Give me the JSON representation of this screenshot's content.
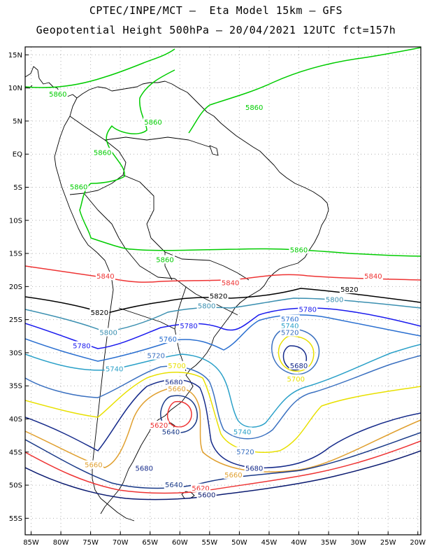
{
  "title_line1": "CPTEC/INPE/MCT –  Eta Model 15km – GFS",
  "title_line2": "Geopotential Height 500hPa – 20/04/2021 12UTC fct=157h",
  "lon_ticks": [
    "85W",
    "80W",
    "75W",
    "70W",
    "65W",
    "60W",
    "55W",
    "50W",
    "45W",
    "40W",
    "35W",
    "30W",
    "25W",
    "20W"
  ],
  "lat_ticks": [
    "15N",
    "10N",
    "5N",
    "EQ",
    "5S",
    "10S",
    "15S",
    "20S",
    "25S",
    "30S",
    "35S",
    "40S",
    "45S",
    "50S",
    "55S"
  ],
  "contour_colors": {
    "5860": "#00cc00",
    "5840": "#ee3333",
    "5820": "#000000",
    "5800": "#3a8fb0",
    "5780": "#1a1aee",
    "5760": "#2a6fd0",
    "5740": "#2aa0c8",
    "5720": "#3a70c0",
    "5700": "#e8e000",
    "5680": "#152a8a",
    "5660": "#e0a030",
    "5640": "#1a3a88",
    "5620": "#ee3333",
    "5600": "#0a1a70"
  },
  "contour_labels": [
    {
      "text": "5860",
      "level": "5860",
      "lon": -80.5,
      "lat": 9.0
    },
    {
      "text": "5860",
      "level": "5860",
      "lon": -47.5,
      "lat": 7.0
    },
    {
      "text": "5860",
      "level": "5860",
      "lon": -64.5,
      "lat": 4.8
    },
    {
      "text": "5860",
      "level": "5860",
      "lon": -73.0,
      "lat": 0.2
    },
    {
      "text": "5860",
      "level": "5860",
      "lon": -77.0,
      "lat": -5.0
    },
    {
      "text": "5860",
      "level": "5860",
      "lon": -40.0,
      "lat": -14.5
    },
    {
      "text": "5860",
      "level": "5860",
      "lon": -62.5,
      "lat": -16.0
    },
    {
      "text": "5840",
      "level": "5840",
      "lon": -72.5,
      "lat": -18.5
    },
    {
      "text": "5840",
      "level": "5840",
      "lon": -51.5,
      "lat": -19.5
    },
    {
      "text": "5840",
      "level": "5840",
      "lon": -27.5,
      "lat": -18.5
    },
    {
      "text": "5820",
      "level": "5820",
      "lon": -31.5,
      "lat": -20.5
    },
    {
      "text": "5820",
      "level": "5820",
      "lon": -53.5,
      "lat": -21.5
    },
    {
      "text": "5820",
      "level": "5820",
      "lon": -73.5,
      "lat": -24.0
    },
    {
      "text": "5800",
      "level": "5800",
      "lon": -55.5,
      "lat": -23.0
    },
    {
      "text": "5800",
      "level": "5800",
      "lon": -34.0,
      "lat": -22.0
    },
    {
      "text": "5800",
      "level": "5800",
      "lon": -72.0,
      "lat": -27.0
    },
    {
      "text": "5780",
      "level": "5780",
      "lon": -58.5,
      "lat": -26.0
    },
    {
      "text": "5780",
      "level": "5780",
      "lon": -38.5,
      "lat": -23.5
    },
    {
      "text": "5780",
      "level": "5780",
      "lon": -76.5,
      "lat": -29.0
    },
    {
      "text": "5760",
      "level": "5760",
      "lon": -41.5,
      "lat": -25.0
    },
    {
      "text": "5760",
      "level": "5760",
      "lon": -62.0,
      "lat": -28.0
    },
    {
      "text": "5740",
      "level": "5740",
      "lon": -41.5,
      "lat": -26.0
    },
    {
      "text": "5740",
      "level": "5740",
      "lon": -71.0,
      "lat": -32.5
    },
    {
      "text": "5740",
      "level": "5740",
      "lon": -49.5,
      "lat": -42.0
    },
    {
      "text": "5720",
      "level": "5720",
      "lon": -41.5,
      "lat": -27.0
    },
    {
      "text": "5720",
      "level": "5720",
      "lon": -64.0,
      "lat": -30.5
    },
    {
      "text": "5720",
      "level": "5720",
      "lon": -49.0,
      "lat": -45.0
    },
    {
      "text": "5700",
      "level": "5700",
      "lon": -60.5,
      "lat": -32.0
    },
    {
      "text": "5700",
      "level": "5700",
      "lon": -40.5,
      "lat": -34.0
    },
    {
      "text": "5680",
      "level": "5680",
      "lon": -40.0,
      "lat": -32.0
    },
    {
      "text": "5680",
      "level": "5680",
      "lon": -61.0,
      "lat": -34.5
    },
    {
      "text": "5680",
      "level": "5680",
      "lon": -66.0,
      "lat": -47.5
    },
    {
      "text": "5680",
      "level": "5680",
      "lon": -47.5,
      "lat": -47.5
    },
    {
      "text": "5660",
      "level": "5660",
      "lon": -60.5,
      "lat": -35.5
    },
    {
      "text": "5660",
      "level": "5660",
      "lon": -74.5,
      "lat": -47.0
    },
    {
      "text": "5660",
      "level": "5660",
      "lon": -51.0,
      "lat": -48.5
    },
    {
      "text": "5640",
      "level": "5640",
      "lon": -61.5,
      "lat": -42.0
    },
    {
      "text": "5640",
      "level": "5640",
      "lon": -61.0,
      "lat": -50.0
    },
    {
      "text": "5620",
      "level": "5620",
      "lon": -63.5,
      "lat": -41.0
    },
    {
      "text": "5620",
      "level": "5620",
      "lon": -56.5,
      "lat": -50.5
    },
    {
      "text": "5600",
      "level": "5600",
      "lon": -55.5,
      "lat": -51.5
    }
  ]
}
